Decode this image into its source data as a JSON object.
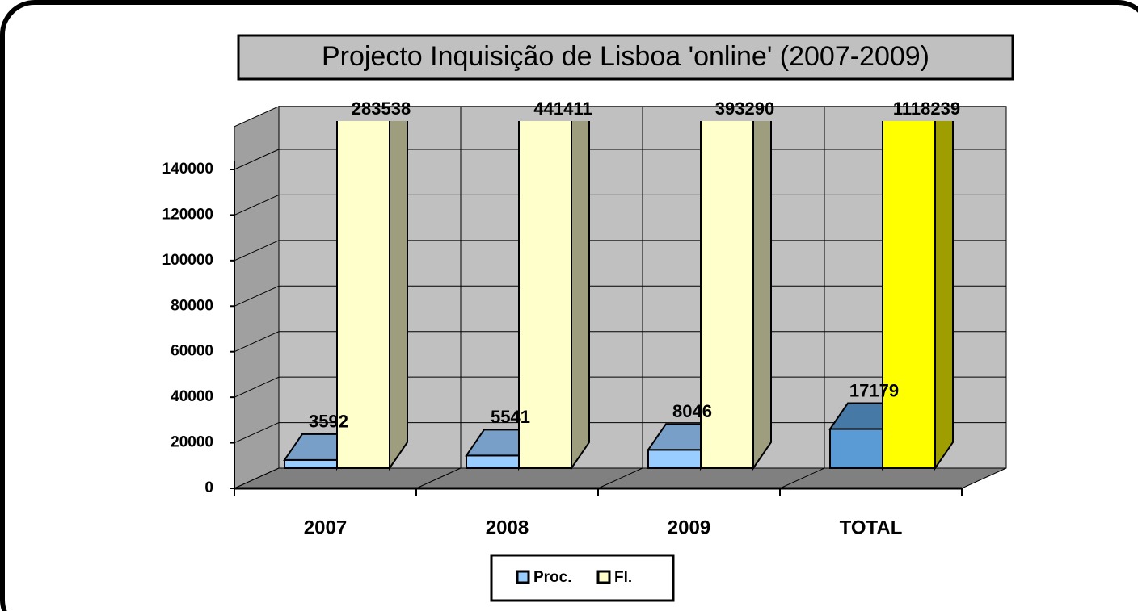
{
  "chart_data": {
    "type": "bar3d",
    "title": "Projecto Inquisição de Lisboa 'online' (2007-2009)",
    "categories": [
      "2007",
      "2008",
      "2009",
      "TOTAL"
    ],
    "series": [
      {
        "name": "Proc.",
        "color": "#99ccff",
        "colors": [
          "#99ccff",
          "#99ccff",
          "#99ccff",
          "#5b9bd5"
        ],
        "values": [
          3592,
          5541,
          8046,
          17179
        ]
      },
      {
        "name": "Fl.",
        "color": "#ffffcc",
        "colors": [
          "#ffffcc",
          "#ffffcc",
          "#ffffcc",
          "#ffff00"
        ],
        "values": [
          283538,
          441411,
          393290,
          1118239
        ]
      }
    ],
    "ylim": [
      0,
      150000
    ],
    "yticks": [
      0,
      20000,
      40000,
      60000,
      80000,
      100000,
      120000,
      140000
    ],
    "grid": true,
    "legend": "bottom"
  }
}
